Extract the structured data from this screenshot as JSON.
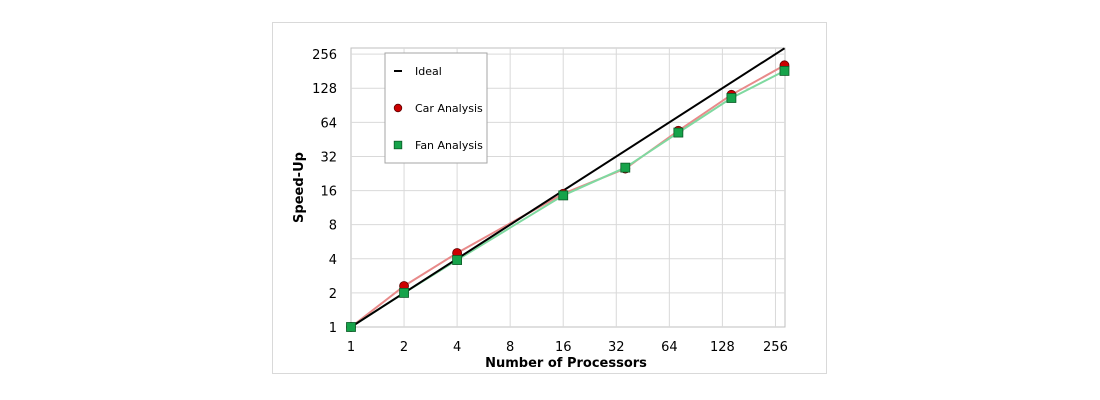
{
  "chart_data": {
    "type": "line",
    "title": "",
    "xlabel": "Number of Processors",
    "ylabel": "Speed-Up",
    "x_scale": "log2",
    "y_scale": "log2",
    "xlim": [
      1,
      290
    ],
    "ylim": [
      1,
      290
    ],
    "x_ticks": [
      1,
      2,
      4,
      8,
      16,
      32,
      64,
      128,
      256
    ],
    "y_ticks": [
      1,
      2,
      4,
      8,
      16,
      32,
      64,
      128,
      256
    ],
    "x_tick_labels": [
      "1",
      "2",
      "4",
      "8",
      "16",
      "32",
      "64",
      "128",
      "256"
    ],
    "y_tick_labels": [
      "1",
      "2",
      "4",
      "8",
      "16",
      "32",
      "64",
      "128",
      "256"
    ],
    "grid": true,
    "legend_position": "top-left",
    "series": [
      {
        "name": "Ideal",
        "color": "#000000",
        "marker": "none",
        "x": [
          1,
          288
        ],
        "y": [
          1,
          288
        ]
      },
      {
        "name": "Car Analysis",
        "color": "#cc0000",
        "line_color": "#e88a8a",
        "marker": "circle",
        "x": [
          1,
          2,
          4,
          16,
          36,
          72,
          144,
          288
        ],
        "y": [
          1,
          2.3,
          4.5,
          15,
          25,
          54,
          112,
          204
        ]
      },
      {
        "name": "Fan Analysis",
        "color": "#16a34a",
        "line_color": "#7fd9a0",
        "marker": "square",
        "x": [
          1,
          2,
          4,
          16,
          36,
          72,
          144,
          288
        ],
        "y": [
          1,
          2,
          3.9,
          14.5,
          25.5,
          52,
          105,
          182
        ]
      }
    ]
  }
}
